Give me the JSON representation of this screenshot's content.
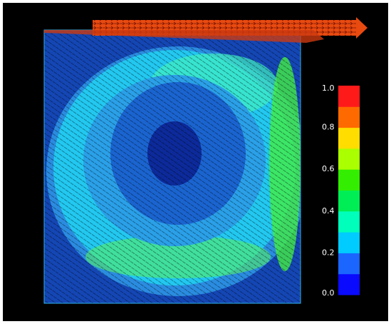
{
  "colorbar": {
    "range": [
      0,
      1
    ],
    "ticks": [
      {
        "value": 0,
        "label": "0.0"
      },
      0.2,
      0.4,
      0.6,
      0.8,
      {
        "value": 1,
        "label": "1.0"
      }
    ],
    "colors": [
      "#0a0aff",
      "#1a66ff",
      "#00ccff",
      "#00ffbb",
      "#00ee55",
      "#33ee00",
      "#aaff00",
      "#ffdd00",
      "#ff6a00",
      "#ff1a1a"
    ]
  }
}
